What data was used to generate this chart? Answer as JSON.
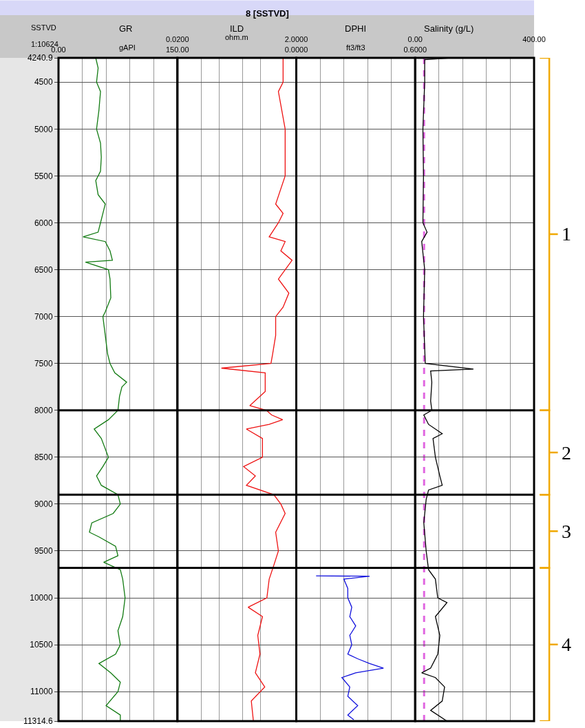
{
  "chart_data": [
    {
      "type": "other",
      "title": "8 [SSTVD]"
    },
    {
      "type": "line",
      "title": "GR",
      "xlabel": "gAPI",
      "ylabel": "SSTVD",
      "annotations": [
        "1:10624"
      ],
      "orientation": "horizontal",
      "marker": "none",
      "grid": true,
      "xlim": [
        0,
        150
      ],
      "xticks": [
        {
          "value": 0,
          "label": "0.00"
        },
        {
          "value": 30,
          "label": null
        },
        {
          "value": 60,
          "label": null
        },
        {
          "value": 90,
          "label": null
        },
        {
          "value": 120,
          "label": null
        },
        {
          "value": 150,
          "label": "150.00"
        }
      ],
      "ylim": [
        11314.6,
        4240.9
      ],
      "yticks": [
        4240.9,
        4500,
        5000,
        5500,
        6000,
        6500,
        7000,
        7500,
        8000,
        8500,
        9000,
        9500,
        10000,
        10500,
        11000,
        11314.6
      ],
      "ref_lines": [
        {
          "axis": "y",
          "value": 8000,
          "color": "#000000"
        },
        {
          "axis": "y",
          "value": 8900,
          "color": "#000000"
        },
        {
          "axis": "y",
          "value": 9680,
          "color": "#000000"
        }
      ],
      "series": [
        {
          "color": "#117a11",
          "x": [
            4240.9,
            4350,
            4500,
            4600,
            4800,
            5000,
            5150,
            5300,
            5450,
            5550,
            5700,
            5800,
            5900,
            6000,
            6100,
            6150,
            6200,
            6300,
            6400,
            6420,
            6500,
            6600,
            6800,
            6950,
            7000,
            7200,
            7400,
            7500,
            7600,
            7700,
            7750,
            7850,
            8000,
            8100,
            8200,
            8300,
            8500,
            8600,
            8700,
            8800,
            8900,
            9000,
            9100,
            9200,
            9300,
            9350,
            9450,
            9550,
            9620,
            9700,
            9800,
            10000,
            10200,
            10350,
            10500,
            10600,
            10700,
            10800,
            10900,
            11000,
            11150,
            11250,
            11314.6
          ],
          "values": [
            47,
            50,
            48,
            53,
            51,
            48,
            53,
            54,
            53,
            47,
            50,
            59,
            56,
            53,
            50,
            31,
            59,
            65,
            68,
            34,
            63,
            65,
            66,
            59,
            56,
            59,
            62,
            65,
            71,
            86,
            80,
            77,
            75,
            63,
            45,
            54,
            63,
            56,
            48,
            54,
            75,
            78,
            69,
            42,
            39,
            51,
            72,
            75,
            57,
            78,
            81,
            84,
            81,
            75,
            78,
            72,
            51,
            66,
            78,
            75,
            60,
            78,
            78
          ]
        }
      ]
    },
    {
      "type": "line",
      "title": "ILD",
      "xlabel": "ohm.m",
      "orientation": "horizontal",
      "marker": "none",
      "grid": true,
      "log": "x",
      "tick_labels": "x",
      "xlim": [
        0.02,
        2
      ],
      "xticks": [
        {
          "value": 0.02,
          "label": "0.0200"
        },
        {
          "value": 0.05,
          "label": null
        },
        {
          "value": 0.1,
          "label": null
        },
        {
          "value": 0.25,
          "label": null
        },
        {
          "value": 0.5,
          "label": null
        },
        {
          "value": 2,
          "label": "2.0000"
        }
      ],
      "ylim": [
        11314.6,
        4240.9
      ],
      "yticks": [
        4240.9,
        4500,
        5000,
        5500,
        6000,
        6500,
        7000,
        7500,
        8000,
        8500,
        9000,
        9500,
        10000,
        10500,
        11000,
        11314.6
      ],
      "ref_lines": [
        {
          "axis": "y",
          "value": 8000,
          "color": "#000000"
        },
        {
          "axis": "y",
          "value": 8900,
          "color": "#000000"
        },
        {
          "axis": "y",
          "value": 9680,
          "color": "#000000"
        }
      ],
      "series": [
        {
          "color": "#ee1111",
          "x": [
            4240.9,
            4500,
            4600,
            5000,
            5500,
            5800,
            5900,
            6000,
            6150,
            6200,
            6300,
            6400,
            6500,
            6600,
            6750,
            6900,
            7000,
            7200,
            7400,
            7500,
            7550,
            7600,
            7800,
            7950,
            8000,
            8050,
            8100,
            8150,
            8200,
            8300,
            8500,
            8600,
            8700,
            8800,
            8900,
            9000,
            9100,
            9300,
            9500,
            9650,
            9800,
            10000,
            10100,
            10200,
            10400,
            10600,
            10800,
            10950,
            11100,
            11314.6
          ],
          "values": [
            1.2,
            1.2,
            1.0,
            1.3,
            1.3,
            0.9,
            1.2,
            1.0,
            0.7,
            1.3,
            1.1,
            1.7,
            1.3,
            1.0,
            1.5,
            1.2,
            0.9,
            0.9,
            0.8,
            0.75,
            0.11,
            0.6,
            0.6,
            0.33,
            0.63,
            0.77,
            1.18,
            0.7,
            0.29,
            0.54,
            0.54,
            0.26,
            0.41,
            0.29,
            0.84,
            1.1,
            1.3,
            0.9,
            1.0,
            0.84,
            0.7,
            0.64,
            0.31,
            0.54,
            0.45,
            0.49,
            0.41,
            0.59,
            0.35,
            0.38
          ]
        }
      ]
    },
    {
      "type": "line",
      "title": "DPHI",
      "xlabel": "ft3/ft3",
      "orientation": "horizontal",
      "marker": "none",
      "grid": true,
      "tick_labels": "x",
      "xlim": [
        0,
        0.6
      ],
      "xticks": [
        {
          "value": 0,
          "label": "0.0000"
        },
        {
          "value": 0.12,
          "label": null
        },
        {
          "value": 0.24,
          "label": null
        },
        {
          "value": 0.36,
          "label": null
        },
        {
          "value": 0.48,
          "label": null
        },
        {
          "value": 0.6,
          "label": "0.6000"
        }
      ],
      "ylim": [
        11314.6,
        4240.9
      ],
      "yticks": [
        4240.9,
        4500,
        5000,
        5500,
        6000,
        6500,
        7000,
        7500,
        8000,
        8500,
        9000,
        9500,
        10000,
        10500,
        11000,
        11314.6
      ],
      "ref_lines": [
        {
          "axis": "y",
          "value": 8000,
          "color": "#000000"
        },
        {
          "axis": "y",
          "value": 8900,
          "color": "#000000"
        },
        {
          "axis": "y",
          "value": 9680,
          "color": "#000000"
        }
      ],
      "series": [
        {
          "color": "#1111dd",
          "x": [
            9765,
            9770,
            9800,
            9900,
            10000,
            10100,
            10200,
            10300,
            10400,
            10500,
            10600,
            10650,
            10700,
            10750,
            10800,
            10850,
            10950,
            11050,
            11150,
            11250,
            11300
          ],
          "values": [
            0.1,
            0.37,
            0.24,
            0.26,
            0.26,
            0.28,
            0.27,
            0.3,
            0.27,
            0.28,
            0.26,
            0.31,
            0.37,
            0.44,
            0.3,
            0.23,
            0.27,
            0.26,
            0.31,
            0.26,
            0.29
          ]
        }
      ]
    },
    {
      "type": "line",
      "title": "Salinity (g/L)",
      "orientation": "horizontal",
      "marker": "none",
      "grid": true,
      "tick_labels": "x",
      "xlim": [
        0,
        400
      ],
      "xticks": [
        {
          "value": 0,
          "label": "0.00"
        },
        {
          "value": 80,
          "label": null
        },
        {
          "value": 160,
          "label": null
        },
        {
          "value": 240,
          "label": null
        },
        {
          "value": 320,
          "label": null
        },
        {
          "value": 400,
          "label": "400.00"
        }
      ],
      "ylim": [
        11314.6,
        4240.9
      ],
      "yticks": [
        4240.9,
        4500,
        5000,
        5500,
        6000,
        6500,
        7000,
        7500,
        8000,
        8500,
        9000,
        9500,
        10000,
        10500,
        11000,
        11314.6
      ],
      "ref_lines": [
        {
          "axis": "y",
          "value": 8000,
          "color": "#000000"
        },
        {
          "axis": "y",
          "value": 8900,
          "color": "#000000"
        },
        {
          "axis": "y",
          "value": 9680,
          "color": "#000000"
        },
        {
          "axis": "x",
          "value": 30,
          "color": "#e066e0",
          "line_style": "dashed"
        }
      ],
      "annotations": [
        "1",
        "2",
        "3",
        "4"
      ],
      "series": [
        {
          "color": "#000000",
          "x": [
            4240.9,
            4260,
            4500,
            5000,
            5500,
            6000,
            6100,
            6200,
            6500,
            7000,
            7500,
            7560,
            7580,
            7700,
            7900,
            8000,
            8050,
            8150,
            8250,
            8300,
            8500,
            8700,
            8800,
            8850,
            8950,
            9200,
            9500,
            9700,
            9800,
            10000,
            10050,
            10200,
            10400,
            10600,
            10750,
            10800,
            10850,
            10950,
            11100,
            11200,
            11314.6
          ],
          "values": [
            120,
            32,
            32,
            26,
            28,
            26,
            40,
            22,
            32,
            28,
            34,
            196,
            52,
            56,
            52,
            56,
            29,
            45,
            91,
            60,
            68,
            83,
            91,
            45,
            37,
            29,
            37,
            45,
            68,
            76,
            107,
            68,
            83,
            76,
            52,
            22,
            68,
            99,
            91,
            52,
            107
          ]
        }
      ]
    }
  ]
}
